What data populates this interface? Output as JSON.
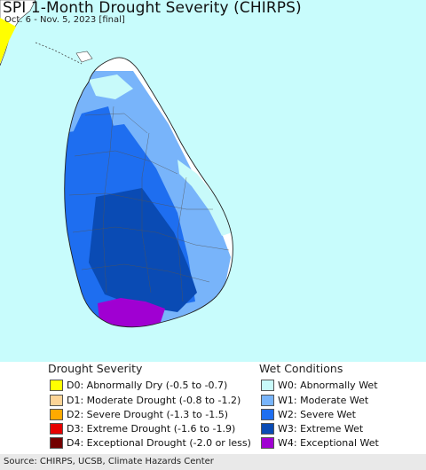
{
  "title": "SPI 1-Month Drought Severity (CHIRPS)",
  "subtitle": "Oct. 6 - Nov. 5, 2023 [final]",
  "colors": {
    "ocean": "#c8fcfc",
    "land_outside": "#ffffff",
    "neighbor_dry": "#ffff00",
    "w0": "#c8fafa",
    "w1": "#78b4fa",
    "w2": "#1e6ef0",
    "w3": "#0a4bb4",
    "w4": "#a000d2"
  },
  "legend": {
    "drought_title": "Drought Severity",
    "wet_title": "Wet Conditions",
    "drought_items": [
      {
        "label": "D0: Abnormally Dry (-0.5 to -0.7)",
        "color": "#ffff00"
      },
      {
        "label": "D1: Moderate Drought (-0.8 to -1.2)",
        "color": "#fcd496"
      },
      {
        "label": "D2: Severe Drought (-1.3 to -1.5)",
        "color": "#ffaa00"
      },
      {
        "label": "D3: Extreme Drought (-1.6 to -1.9)",
        "color": "#e60000"
      },
      {
        "label": "D4: Exceptional Drought (-2.0 or less)",
        "color": "#730000"
      }
    ],
    "wet_items": [
      {
        "label": "W0: Abnormally Wet",
        "color": "#c8fafa"
      },
      {
        "label": "W1: Moderate Wet",
        "color": "#78b4fa"
      },
      {
        "label": "W2: Severe Wet",
        "color": "#1e6ef0"
      },
      {
        "label": "W3: Extreme Wet",
        "color": "#0a4bb4"
      },
      {
        "label": "W4: Exceptional Wet",
        "color": "#a000d2"
      }
    ]
  },
  "source": "Source: CHIRPS, UCSB, Climate Hazards Center"
}
